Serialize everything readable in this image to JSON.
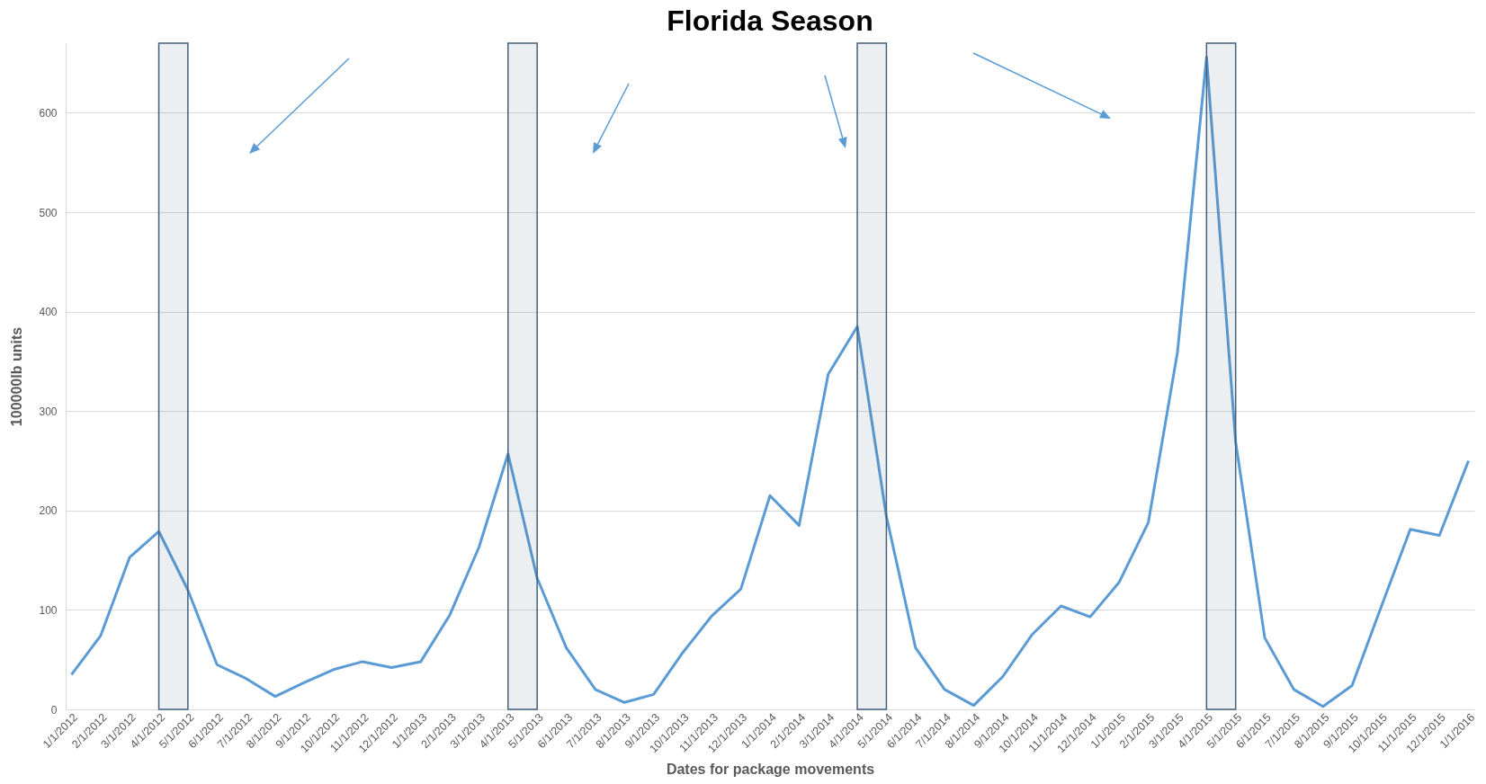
{
  "chart_data": {
    "type": "line",
    "title": "Florida Season",
    "xlabel": "Dates for package movements",
    "ylabel": "100000lb units",
    "categories": [
      "1/1/2012",
      "2/1/2012",
      "3/1/2012",
      "4/1/2012",
      "5/1/2012",
      "6/1/2012",
      "7/1/2012",
      "8/1/2012",
      "9/1/2012",
      "10/1/2012",
      "11/1/2012",
      "12/1/2012",
      "1/1/2013",
      "2/1/2013",
      "3/1/2013",
      "4/1/2013",
      "5/1/2013",
      "6/1/2013",
      "7/1/2013",
      "8/1/2013",
      "9/1/2013",
      "10/1/2013",
      "11/1/2013",
      "12/1/2013",
      "1/1/2014",
      "2/1/2014",
      "3/1/2014",
      "4/1/2014",
      "5/1/2014",
      "6/1/2014",
      "7/1/2014",
      "8/1/2014",
      "9/1/2014",
      "10/1/2014",
      "11/1/2014",
      "12/1/2014",
      "1/1/2015",
      "2/1/2015",
      "3/1/2015",
      "4/1/2015",
      "5/1/2015",
      "6/1/2015",
      "7/1/2015",
      "8/1/2015",
      "9/1/2015",
      "10/1/2015",
      "11/1/2015",
      "12/1/2015",
      "1/1/2016"
    ],
    "series": [
      {
        "color": "#5b9bd5",
        "values": [
          35,
          74,
          153,
          179,
          120,
          45,
          31,
          13,
          27,
          40,
          48,
          42,
          48,
          95,
          163,
          257,
          132,
          62,
          20,
          7,
          15,
          57,
          94,
          121,
          215,
          185,
          337,
          385,
          194,
          62,
          20,
          4,
          33,
          75,
          104,
          93,
          128,
          188,
          359,
          656,
          269,
          72,
          20,
          3,
          24,
          103,
          181,
          175,
          250
        ]
      }
    ],
    "ylim": [
      0,
      670
    ],
    "yticks": [
      0,
      100,
      200,
      300,
      400,
      500,
      600
    ],
    "grid": "y",
    "line_style": "solid",
    "marker": "none",
    "bands": [
      {
        "axis": "x",
        "from": "4/1/2012",
        "to": "5/1/2012",
        "color": "#44607a"
      },
      {
        "axis": "x",
        "from": "4/1/2013",
        "to": "5/1/2013",
        "color": "#44607a"
      },
      {
        "axis": "x",
        "from": "4/1/2014",
        "to": "5/1/2014",
        "color": "#44607a"
      },
      {
        "axis": "x",
        "from": "4/1/2015",
        "to": "5/1/2015",
        "color": "#44607a"
      }
    ]
  }
}
